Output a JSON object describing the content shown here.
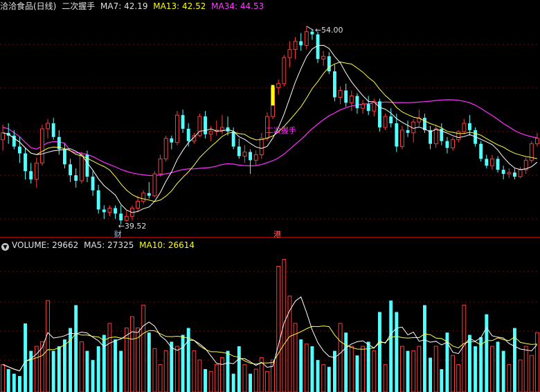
{
  "header": {
    "title": "洽洽食品(日线)",
    "indicator": "二次握手",
    "ma7": "MA7: 42.19",
    "ma13": "MA13: 42.52",
    "ma34": "MA34: 44.53"
  },
  "volume_header": {
    "volume": "VOLUME: 29662",
    "ma5": "MA5: 27325",
    "ma10": "MA10: 26614"
  },
  "colors": {
    "up": "#ff3c3c",
    "down": "#54ffff",
    "ma7": "#ffffff",
    "ma13": "#ffff40",
    "ma34": "#ff30ff",
    "signal": "#ffff00",
    "divider": "#b80000",
    "grid": "#8a0000"
  },
  "chart_data": [
    {
      "type": "candlestick",
      "title": "洽洽食品(日线)",
      "annotations": {
        "high_label": "54.00",
        "low_label": "39.52",
        "signal_label": "二次握手",
        "low_marker": "财",
        "divider_marker": "港"
      },
      "ohlc_note": "approximate per-day prices read from the chart (open, high, low, close)",
      "candles": [
        [
          45.7,
          46.8,
          44.9,
          46.2
        ],
        [
          46.2,
          46.9,
          45.4,
          46.0
        ],
        [
          46.0,
          46.4,
          45.0,
          45.2
        ],
        [
          45.2,
          45.9,
          44.0,
          44.7
        ],
        [
          44.7,
          45.1,
          42.8,
          43.4
        ],
        [
          43.4,
          44.0,
          42.5,
          42.8
        ],
        [
          42.8,
          44.4,
          42.2,
          44.0
        ],
        [
          44.0,
          46.8,
          43.8,
          46.5
        ],
        [
          46.5,
          47.2,
          45.8,
          46.9
        ],
        [
          46.9,
          47.3,
          45.7,
          45.9
        ],
        [
          45.9,
          46.4,
          44.6,
          45.0
        ],
        [
          45.0,
          45.4,
          43.6,
          43.9
        ],
        [
          43.9,
          44.3,
          42.6,
          43.1
        ],
        [
          43.1,
          43.6,
          42.2,
          42.7
        ],
        [
          42.7,
          44.8,
          42.5,
          44.6
        ],
        [
          44.6,
          44.9,
          42.6,
          43.0
        ],
        [
          43.0,
          43.4,
          41.6,
          42.0
        ],
        [
          42.0,
          42.4,
          40.3,
          40.6
        ],
        [
          40.6,
          40.9,
          39.9,
          40.4
        ],
        [
          40.4,
          40.9,
          40.1,
          40.7
        ],
        [
          40.7,
          40.9,
          39.9,
          40.3
        ],
        [
          40.3,
          40.9,
          39.52,
          39.8
        ],
        [
          39.8,
          40.5,
          39.7,
          40.1
        ],
        [
          40.1,
          40.9,
          39.8,
          40.7
        ],
        [
          40.7,
          41.6,
          40.4,
          41.2
        ],
        [
          41.2,
          42.0,
          41.0,
          41.8
        ],
        [
          41.8,
          42.6,
          41.4,
          41.6
        ],
        [
          41.6,
          43.4,
          41.5,
          43.2
        ],
        [
          43.2,
          44.6,
          43.0,
          44.3
        ],
        [
          44.3,
          46.0,
          44.1,
          45.8
        ],
        [
          45.8,
          46.0,
          45.0,
          45.5
        ],
        [
          45.5,
          47.8,
          45.3,
          47.5
        ],
        [
          47.5,
          47.9,
          46.2,
          46.5
        ],
        [
          46.5,
          46.9,
          45.2,
          45.6
        ],
        [
          45.6,
          46.2,
          45.4,
          46.0
        ],
        [
          46.0,
          47.6,
          45.9,
          47.4
        ],
        [
          47.4,
          47.8,
          45.8,
          46.1
        ],
        [
          46.1,
          46.7,
          45.6,
          46.3
        ],
        [
          46.3,
          47.1,
          46.0,
          46.4
        ],
        [
          46.4,
          47.5,
          46.1,
          46.6
        ],
        [
          46.6,
          47.4,
          46.0,
          46.3
        ],
        [
          46.3,
          46.6,
          45.0,
          45.2
        ],
        [
          45.2,
          45.8,
          44.3,
          44.5
        ],
        [
          44.5,
          45.3,
          44.0,
          44.8
        ],
        [
          44.8,
          45.0,
          43.2,
          44.2
        ],
        [
          44.2,
          44.9,
          43.8,
          44.6
        ],
        [
          44.6,
          46.2,
          44.3,
          45.8
        ],
        [
          45.8,
          47.7,
          45.6,
          47.4
        ],
        [
          47.4,
          49.7,
          47.2,
          49.5
        ],
        [
          49.5,
          50.1,
          49.0,
          49.8
        ],
        [
          49.8,
          51.9,
          49.6,
          51.7
        ],
        [
          51.7,
          52.9,
          51.0,
          52.3
        ],
        [
          52.3,
          53.2,
          51.6,
          52.9
        ],
        [
          52.9,
          53.5,
          52.2,
          52.6
        ],
        [
          52.6,
          54.0,
          52.3,
          53.6
        ],
        [
          53.6,
          53.8,
          53.0,
          53.4
        ],
        [
          53.4,
          53.6,
          51.3,
          51.6
        ],
        [
          51.6,
          52.2,
          51.1,
          51.8
        ],
        [
          51.8,
          52.1,
          50.5,
          50.7
        ],
        [
          50.7,
          51.2,
          48.5,
          48.8
        ],
        [
          48.8,
          49.6,
          48.3,
          49.3
        ],
        [
          49.3,
          49.8,
          48.1,
          48.4
        ],
        [
          48.4,
          49.3,
          47.8,
          48.9
        ],
        [
          48.9,
          49.1,
          47.6,
          48.0
        ],
        [
          48.0,
          48.6,
          47.6,
          48.3
        ],
        [
          48.3,
          48.9,
          47.5,
          47.8
        ],
        [
          47.8,
          48.7,
          47.4,
          48.5
        ],
        [
          48.5,
          48.7,
          46.3,
          46.6
        ],
        [
          46.6,
          47.6,
          46.4,
          47.4
        ],
        [
          47.4,
          48.0,
          46.6,
          46.9
        ],
        [
          46.9,
          47.6,
          44.8,
          45.2
        ],
        [
          45.2,
          46.7,
          45.0,
          46.4
        ],
        [
          46.4,
          47.1,
          45.9,
          46.2
        ],
        [
          46.2,
          47.2,
          45.5,
          47.0
        ],
        [
          47.0,
          47.9,
          46.7,
          47.3
        ],
        [
          47.3,
          47.6,
          46.2,
          46.4
        ],
        [
          46.4,
          46.7,
          45.0,
          45.4
        ],
        [
          45.4,
          46.8,
          45.1,
          46.5
        ],
        [
          46.5,
          46.9,
          45.3,
          45.6
        ],
        [
          45.6,
          45.9,
          44.7,
          45.1
        ],
        [
          45.1,
          45.9,
          44.9,
          45.7
        ],
        [
          45.7,
          46.4,
          45.5,
          46.3
        ],
        [
          46.3,
          47.2,
          46.1,
          46.9
        ],
        [
          46.9,
          47.5,
          46.0,
          46.4
        ],
        [
          46.4,
          46.6,
          45.2,
          45.4
        ],
        [
          45.4,
          45.6,
          44.1,
          44.3
        ],
        [
          44.3,
          44.6,
          43.6,
          43.8
        ],
        [
          43.8,
          44.6,
          43.5,
          44.3
        ],
        [
          44.3,
          44.5,
          43.3,
          43.5
        ],
        [
          43.5,
          43.8,
          42.8,
          43.2
        ],
        [
          43.2,
          43.6,
          42.9,
          43.3
        ],
        [
          43.3,
          43.6,
          42.8,
          43.0
        ],
        [
          43.0,
          43.7,
          42.9,
          43.5
        ],
        [
          43.5,
          44.4,
          43.2,
          44.2
        ],
        [
          44.2,
          45.6,
          44.0,
          45.4
        ],
        [
          45.4,
          46.2,
          45.2,
          45.8
        ]
      ],
      "volume": [
        12,
        10,
        8,
        7,
        30,
        18,
        20,
        22,
        40,
        18,
        20,
        23,
        28,
        38,
        22,
        18,
        14,
        20,
        25,
        30,
        23,
        18,
        28,
        33,
        28,
        38,
        26,
        19,
        12,
        18,
        22,
        20,
        25,
        28,
        18,
        14,
        10,
        9,
        12,
        15,
        18,
        8,
        20,
        12,
        8,
        10,
        15,
        9,
        14,
        55,
        58,
        42,
        30,
        23,
        21,
        20,
        14,
        12,
        11,
        18,
        30,
        26,
        20,
        16,
        20,
        22,
        18,
        35,
        12,
        40,
        35,
        20,
        18,
        18,
        20,
        38,
        15,
        20,
        10,
        26,
        16,
        12,
        38,
        25,
        20,
        24,
        34,
        20,
        22,
        18,
        12,
        28,
        14,
        20,
        16,
        26
      ],
      "volume_header_values": {
        "VOLUME": 29662,
        "MA5": 27325,
        "MA10": 26614
      },
      "moving_averages": [
        "MA7",
        "MA13",
        "MA34"
      ]
    }
  ]
}
